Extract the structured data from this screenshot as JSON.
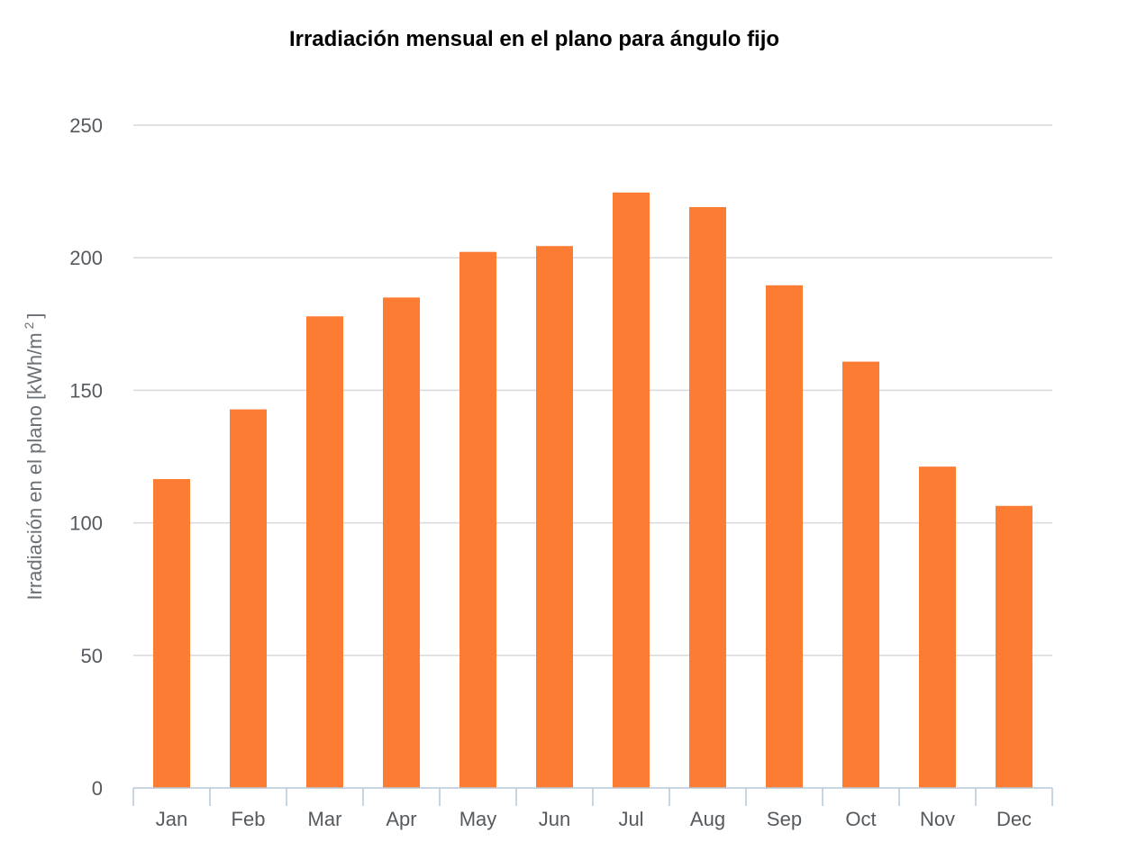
{
  "chart_data": {
    "type": "bar",
    "title": "Irradiación mensual en el plano para ángulo fijo",
    "xlabel": "",
    "ylabel": "Irradiación en el plano [kWh/m",
    "ylabel_superscript": "2",
    "ylabel_suffix": "]",
    "categories": [
      "Jan",
      "Feb",
      "Mar",
      "Apr",
      "May",
      "Jun",
      "Jul",
      "Aug",
      "Sep",
      "Oct",
      "Nov",
      "Dec"
    ],
    "series": [
      {
        "name": "Irradiación en el plano",
        "values": [
          116.5,
          142.8,
          177.9,
          185.0,
          202.2,
          204.4,
          224.6,
          219.1,
          189.6,
          160.8,
          121.2,
          106.4
        ]
      }
    ],
    "ylim": [
      0,
      250
    ],
    "yticks": [
      0,
      50,
      100,
      150,
      200,
      250
    ],
    "grid": true,
    "legend": "none",
    "colors": {
      "bar": "#fc7c33",
      "grid": "#d6d9de",
      "axis": "#b9c7d8",
      "tick_text": "#555a5f",
      "title": "#000000"
    }
  }
}
